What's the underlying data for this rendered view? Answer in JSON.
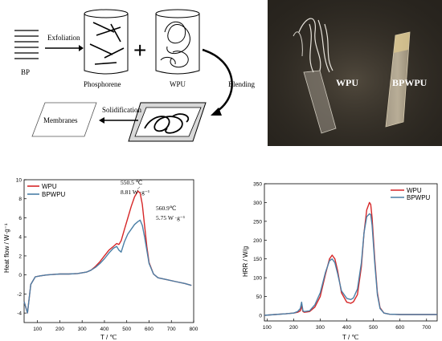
{
  "scheme": {
    "bp_label": "BP",
    "exfoliation_label": "Exfoliation",
    "phosphorene_label": "Phosphorene",
    "wpu_label": "WPU",
    "blending_label": "Blending",
    "solidification_label": "Solidification",
    "membranes_label": "Membranes",
    "plus_sign": "+"
  },
  "photo": {
    "left_label": "WPU",
    "right_label": "BPWPU",
    "bg_color": "#2a2620"
  },
  "colors": {
    "wpu": "#d62728",
    "bpwpu": "#4a7fa6"
  },
  "chart_data": [
    {
      "type": "line",
      "xlabel": "T / ℃",
      "ylabel": "Heat flow / W·g⁻¹",
      "xlim": [
        40,
        800
      ],
      "ylim": [
        -5,
        10
      ],
      "xticks": [
        100,
        200,
        300,
        400,
        500,
        600,
        700,
        800
      ],
      "yticks": [
        -4,
        -2,
        0,
        2,
        4,
        6,
        8,
        10
      ],
      "legend": "top-left",
      "grid": false,
      "annotations": [
        {
          "line1": "550.5 ℃",
          "line2": "8.81 W ·g⁻¹"
        },
        {
          "line1": "560.9℃",
          "line2": "5.75 W ·g⁻¹"
        }
      ],
      "series": [
        {
          "name": "WPU",
          "color": "#d62728",
          "x": [
            40,
            55,
            70,
            90,
            110,
            140,
            170,
            200,
            240,
            280,
            320,
            340,
            360,
            380,
            400,
            420,
            440,
            455,
            465,
            475,
            490,
            505,
            520,
            535,
            550,
            560,
            570,
            580,
            590,
            600,
            620,
            640,
            680,
            720,
            760,
            790
          ],
          "y": [
            -2.8,
            -4.0,
            -1.0,
            -0.2,
            -0.1,
            0.0,
            0.05,
            0.1,
            0.1,
            0.15,
            0.3,
            0.5,
            0.9,
            1.4,
            2.0,
            2.6,
            3.0,
            3.3,
            3.2,
            3.6,
            4.8,
            6.0,
            7.2,
            8.2,
            8.81,
            8.6,
            7.4,
            5.2,
            3.0,
            1.3,
            0.1,
            -0.3,
            -0.5,
            -0.7,
            -0.9,
            -1.1
          ]
        },
        {
          "name": "BPWPU",
          "color": "#4a7fa6",
          "x": [
            40,
            55,
            70,
            90,
            110,
            140,
            170,
            200,
            240,
            280,
            320,
            340,
            360,
            380,
            400,
            420,
            440,
            455,
            465,
            475,
            490,
            505,
            520,
            535,
            550,
            560,
            570,
            580,
            590,
            600,
            620,
            640,
            680,
            720,
            760,
            790
          ],
          "y": [
            -2.8,
            -4.0,
            -1.0,
            -0.2,
            -0.1,
            0.0,
            0.05,
            0.1,
            0.1,
            0.15,
            0.3,
            0.5,
            0.8,
            1.2,
            1.7,
            2.3,
            2.8,
            3.0,
            2.6,
            2.4,
            3.5,
            4.3,
            4.8,
            5.3,
            5.6,
            5.75,
            5.2,
            4.0,
            2.6,
            1.2,
            0.1,
            -0.3,
            -0.5,
            -0.7,
            -0.9,
            -1.1
          ]
        }
      ]
    },
    {
      "type": "line",
      "xlabel": "T / ℃",
      "ylabel": "HRR / W/g",
      "xlim": [
        90,
        740
      ],
      "ylim": [
        -15,
        350
      ],
      "xticks": [
        100,
        200,
        300,
        400,
        500,
        600,
        700
      ],
      "yticks": [
        0,
        50,
        100,
        150,
        200,
        250,
        300,
        350
      ],
      "legend": "top-right",
      "grid": false,
      "series": [
        {
          "name": "WPU",
          "color": "#d62728",
          "x": [
            90,
            130,
            170,
            200,
            215,
            225,
            230,
            235,
            240,
            260,
            280,
            300,
            320,
            335,
            345,
            355,
            365,
            380,
            400,
            415,
            425,
            440,
            455,
            465,
            475,
            485,
            490,
            495,
            505,
            515,
            525,
            540,
            560,
            600,
            650,
            700,
            740
          ],
          "y": [
            0,
            2,
            4,
            6,
            8,
            12,
            25,
            10,
            8,
            10,
            22,
            50,
            110,
            150,
            160,
            150,
            120,
            60,
            35,
            32,
            36,
            55,
            130,
            220,
            280,
            300,
            295,
            260,
            150,
            60,
            20,
            6,
            3,
            2,
            2,
            2,
            2
          ]
        },
        {
          "name": "BPWPU",
          "color": "#4a7fa6",
          "x": [
            90,
            130,
            170,
            200,
            215,
            225,
            230,
            235,
            240,
            260,
            280,
            300,
            320,
            335,
            345,
            355,
            365,
            380,
            400,
            415,
            425,
            440,
            455,
            465,
            475,
            485,
            490,
            495,
            505,
            515,
            525,
            540,
            560,
            600,
            650,
            700,
            740
          ],
          "y": [
            0,
            2,
            4,
            6,
            10,
            18,
            35,
            12,
            10,
            12,
            28,
            60,
            115,
            145,
            150,
            140,
            112,
            65,
            45,
            42,
            46,
            70,
            140,
            220,
            262,
            270,
            268,
            240,
            140,
            55,
            18,
            6,
            3,
            2,
            2,
            2,
            2
          ]
        }
      ]
    }
  ]
}
